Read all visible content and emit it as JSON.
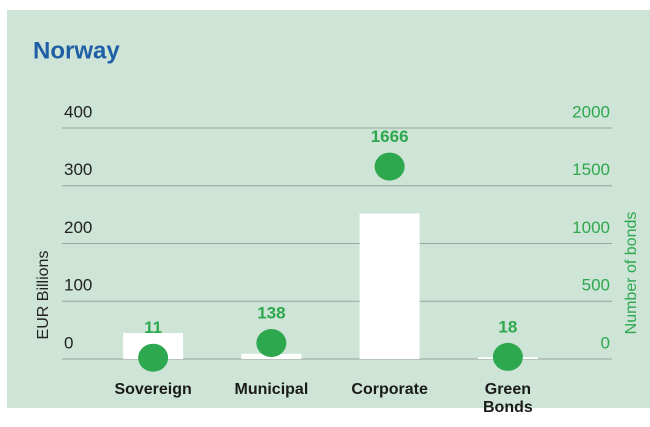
{
  "chart_data": {
    "type": "bar",
    "title": "Norway",
    "categories": [
      "Sovereign",
      "Municipal",
      "Corporate",
      "Green Bonds"
    ],
    "ylabel": "EUR Billions",
    "y2label": "Number of bonds",
    "ylim": [
      0,
      400
    ],
    "yticks": [
      0,
      100,
      200,
      300,
      400
    ],
    "y2lim": [
      0,
      2000
    ],
    "y2ticks": [
      0,
      500,
      1000,
      1500,
      2000
    ],
    "grid": true,
    "series": [
      {
        "name": "EUR Billions",
        "type": "bar",
        "color": "#ffffff",
        "values": [
          45,
          9,
          252,
          3
        ]
      },
      {
        "name": "Number of bonds",
        "type": "scatter",
        "axis": "y2",
        "color": "#2ea84f",
        "values": [
          11,
          138,
          1666,
          18
        ]
      }
    ]
  }
}
